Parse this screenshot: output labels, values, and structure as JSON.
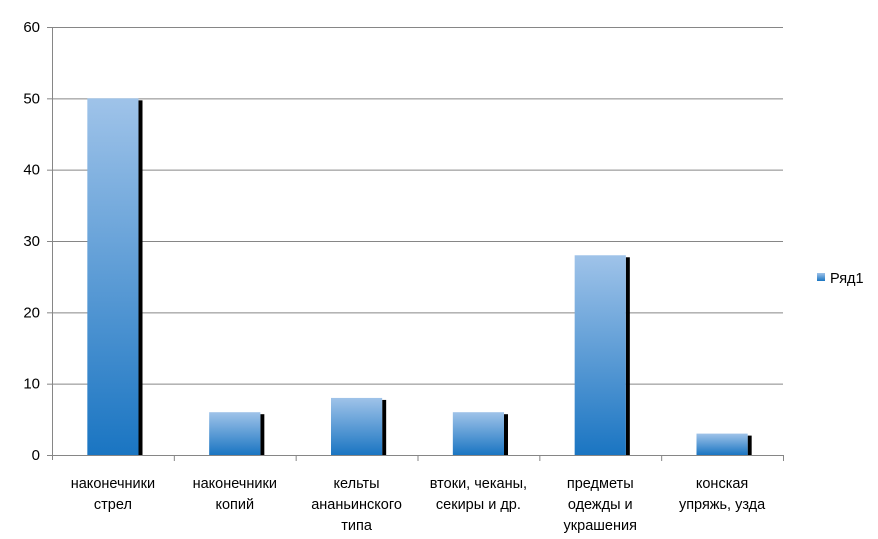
{
  "chart_data": {
    "type": "bar",
    "categories": [
      [
        "наконечники",
        "стрел"
      ],
      [
        "наконечники",
        "копий"
      ],
      [
        "кельты",
        "ананьинского",
        "типа"
      ],
      [
        "втоки, чеканы,",
        "секиры и др."
      ],
      [
        "предметы",
        "одежды и",
        "украшения"
      ],
      [
        "конская",
        "упряжь, узда"
      ]
    ],
    "series": [
      {
        "name": "Ряд1",
        "values": [
          50,
          6,
          8,
          6,
          28,
          3
        ]
      }
    ],
    "ylim": [
      0,
      60
    ],
    "yticks": [
      0,
      10,
      20,
      30,
      40,
      50,
      60
    ],
    "grid": true,
    "legend_position": "right",
    "colors": {
      "bar_top": "#9fc3e9",
      "bar_bottom": "#1a75c2",
      "bar_shadow": "#000000",
      "grid": "#868686",
      "axis": "#868686"
    }
  }
}
